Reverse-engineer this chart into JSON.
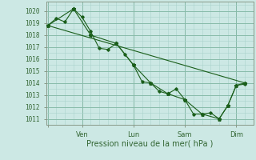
{
  "xlabel": "Pression niveau de la mer( hPa )",
  "ylabel": "",
  "bg_color": "#cce8e4",
  "grid_minor_color": "#aad4cc",
  "grid_major_color": "#88bbaa",
  "line_color": "#1a5e1a",
  "label_color": "#336633",
  "ylim": [
    1010.5,
    1020.8
  ],
  "yticks": [
    1011,
    1012,
    1013,
    1014,
    1015,
    1016,
    1017,
    1018,
    1019,
    1020
  ],
  "day_lines_x": [
    0.0,
    2.0,
    5.0,
    8.0,
    11.0
  ],
  "day_labels": [
    "",
    "Ven",
    "Lun",
    "Sam",
    "Dim"
  ],
  "series1_x": [
    0.0,
    0.5,
    1.0,
    1.5,
    2.0,
    2.5,
    3.0,
    3.5,
    4.0,
    4.5,
    5.0,
    5.5,
    6.0,
    6.5,
    7.0,
    7.5,
    8.0,
    8.5,
    9.0,
    9.5,
    10.0,
    10.5,
    11.0,
    11.5
  ],
  "series1_y": [
    1018.8,
    1019.4,
    1019.1,
    1020.2,
    1019.5,
    1018.3,
    1016.9,
    1016.8,
    1017.3,
    1016.4,
    1015.5,
    1014.1,
    1014.0,
    1013.3,
    1013.1,
    1013.5,
    1012.6,
    1011.4,
    1011.4,
    1011.5,
    1011.0,
    1012.1,
    1013.8,
    1013.9
  ],
  "series2_x": [
    0.0,
    11.5
  ],
  "series2_y": [
    1018.8,
    1014.0
  ],
  "series3_x": [
    0.0,
    1.5,
    2.5,
    4.0,
    5.0,
    6.0,
    7.0,
    8.0,
    9.0,
    10.0,
    10.5,
    11.0,
    11.5
  ],
  "series3_y": [
    1018.8,
    1020.2,
    1018.0,
    1017.3,
    1015.5,
    1014.0,
    1013.1,
    1012.6,
    1011.4,
    1011.0,
    1012.1,
    1013.8,
    1014.0
  ],
  "xlim": [
    -0.1,
    12.0
  ]
}
